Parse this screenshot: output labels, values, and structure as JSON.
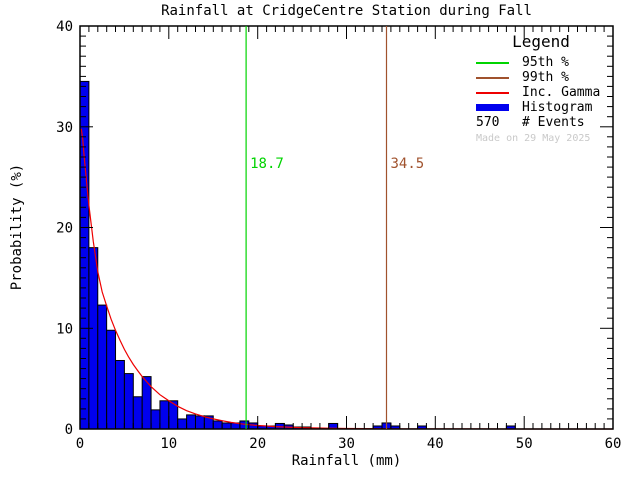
{
  "title": "Rainfall at CridgeCentre Station during Fall",
  "x_axis": {
    "label": "Rainfall (mm)",
    "min": 0,
    "max": 60,
    "major_ticks": [
      0,
      10,
      20,
      30,
      40,
      50,
      60
    ],
    "minor_step": 1
  },
  "y_axis": {
    "label": "Probability (%)",
    "min": 0,
    "max": 40,
    "major_ticks": [
      0,
      10,
      20,
      30,
      40
    ],
    "minor_step": 1
  },
  "legend": {
    "title": "Legend",
    "items": [
      {
        "name": "95th-percentile",
        "swatch": "line",
        "color": "#00d400",
        "label": "95th %"
      },
      {
        "name": "99th-percentile",
        "swatch": "line",
        "color": "#a0522d",
        "label": "99th %"
      },
      {
        "name": "inc-gamma",
        "swatch": "line",
        "color": "#ee0000",
        "label": "Inc. Gamma"
      },
      {
        "name": "histogram",
        "swatch": "bar",
        "color": "#0000ee",
        "label": "Histogram"
      },
      {
        "name": "events",
        "swatch": "text",
        "text": "570",
        "label": "# Events"
      }
    ],
    "made_on": "Made on 29 May 2025"
  },
  "chart_data": {
    "type": "bar",
    "title": "Rainfall at CridgeCentre Station during Fall",
    "xlabel": "Rainfall (mm)",
    "ylabel": "Probability (%)",
    "xlim": [
      0,
      60
    ],
    "ylim": [
      0,
      40
    ],
    "grid": false,
    "legend_position": "top-right",
    "n_events": 570,
    "bin_width_mm": 1,
    "histogram_pct": [
      34.5,
      18.0,
      12.3,
      9.8,
      6.8,
      5.5,
      3.2,
      5.2,
      1.9,
      2.8,
      2.8,
      1.0,
      1.4,
      1.3,
      1.3,
      0.8,
      0.6,
      0.6,
      0.8,
      0.6,
      0.3,
      0.3,
      0.55,
      0.4,
      0.2,
      0.2,
      0,
      0,
      0.55,
      0,
      0,
      0,
      0,
      0.3,
      0.6,
      0.3,
      0,
      0,
      0.3,
      0,
      0,
      0,
      0,
      0,
      0,
      0,
      0,
      0,
      0.3,
      0,
      0,
      0,
      0,
      0,
      0,
      0,
      0,
      0,
      0,
      0
    ],
    "gamma_curve": [
      [
        0.15,
        29.8
      ],
      [
        0.3,
        28.8
      ],
      [
        0.5,
        26.8
      ],
      [
        0.75,
        24.4
      ],
      [
        1,
        22.2
      ],
      [
        1.5,
        18.6
      ],
      [
        2,
        15.6
      ],
      [
        2.5,
        13.6
      ],
      [
        3,
        12.2
      ],
      [
        3.5,
        10.9
      ],
      [
        4,
        9.8
      ],
      [
        4.5,
        8.8
      ],
      [
        5,
        7.9
      ],
      [
        5.5,
        7.1
      ],
      [
        6,
        6.4
      ],
      [
        6.5,
        5.8
      ],
      [
        7,
        5.2
      ],
      [
        7.5,
        4.7
      ],
      [
        8,
        4.2
      ],
      [
        8.5,
        3.8
      ],
      [
        9,
        3.4
      ],
      [
        9.5,
        3.1
      ],
      [
        10,
        2.8
      ],
      [
        11,
        2.25
      ],
      [
        12,
        1.82
      ],
      [
        13,
        1.5
      ],
      [
        14,
        1.22
      ],
      [
        15,
        1.0
      ],
      [
        16,
        0.82
      ],
      [
        17,
        0.66
      ],
      [
        18,
        0.53
      ],
      [
        19,
        0.43
      ],
      [
        20,
        0.35
      ],
      [
        21,
        0.3
      ],
      [
        22,
        0.24
      ],
      [
        23,
        0.2
      ],
      [
        24,
        0.16
      ],
      [
        25,
        0.13
      ],
      [
        26,
        0.11
      ],
      [
        28,
        0.08
      ],
      [
        30,
        0.05
      ],
      [
        32,
        0.04
      ],
      [
        35,
        0.02
      ],
      [
        40,
        0.01
      ],
      [
        45,
        0.01
      ],
      [
        50,
        0.0
      ],
      [
        55,
        0.0
      ],
      [
        60,
        0.0
      ]
    ],
    "vlines": [
      {
        "x": 18.7,
        "label": "18.7",
        "color": "#00d400",
        "name": "95th-percentile-line"
      },
      {
        "x": 34.5,
        "label": "34.5",
        "color": "#a0522d",
        "name": "99th-percentile-line"
      }
    ],
    "colors": {
      "histogram_fill": "#0000ee",
      "histogram_outline": "#000000",
      "gamma_line": "#ee0000",
      "p95_line": "#00d400",
      "p99_line": "#a0522d",
      "axis": "#000000",
      "made_on_text": "#c9c9c9"
    }
  }
}
